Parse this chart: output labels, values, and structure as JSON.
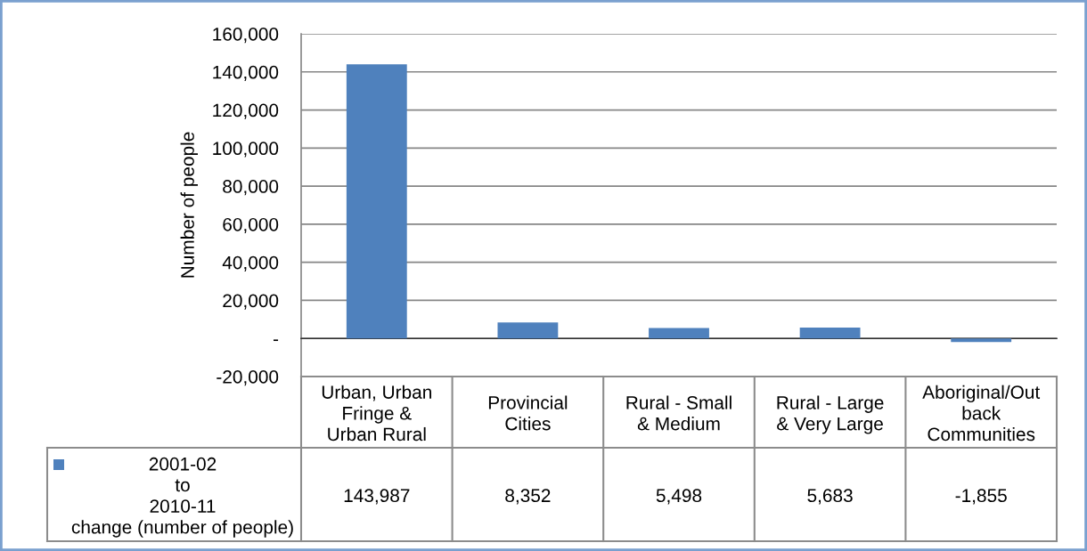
{
  "chart_data": {
    "type": "bar",
    "ylabel": "Number of people",
    "categories": [
      "Urban, Urban\nFringe &\nUrban Rural",
      "Provincial\nCities",
      "Rural - Small\n& Medium",
      "Rural - Large\n& Very Large",
      "Aboriginal/Out\nback\nCommunities"
    ],
    "series": [
      {
        "name": "2001-02\nto\n2010-11\nchange (number of people)",
        "color": "#4f81bd",
        "values": [
          143987,
          8352,
          5498,
          5683,
          -1855
        ],
        "value_labels": [
          "143,987",
          "8,352",
          "5,498",
          "5,683",
          "-1,855"
        ]
      }
    ],
    "ylim": [
      -20000,
      160000
    ],
    "yticks": [
      {
        "value": -20000,
        "label": "-20,000"
      },
      {
        "value": 0,
        "label": "-"
      },
      {
        "value": 20000,
        "label": "20,000"
      },
      {
        "value": 40000,
        "label": "40,000"
      },
      {
        "value": 60000,
        "label": "60,000"
      },
      {
        "value": 80000,
        "label": "80,000"
      },
      {
        "value": 100000,
        "label": "100,000"
      },
      {
        "value": 120000,
        "label": "120,000"
      },
      {
        "value": 140000,
        "label": "140,000"
      },
      {
        "value": 160000,
        "label": "160,000"
      }
    ],
    "grid": "y",
    "legend": "bottom left"
  }
}
